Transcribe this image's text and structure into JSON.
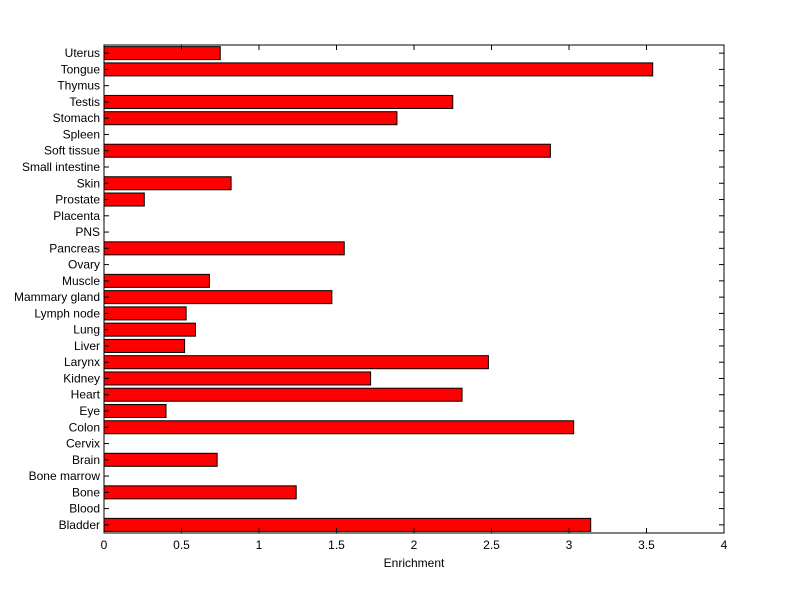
{
  "chart_data": {
    "type": "bar",
    "orientation": "horizontal",
    "categories": [
      "Bladder",
      "Blood",
      "Bone",
      "Bone marrow",
      "Brain",
      "Cervix",
      "Colon",
      "Eye",
      "Heart",
      "Kidney",
      "Larynx",
      "Liver",
      "Lung",
      "Lymph node",
      "Mammary gland",
      "Muscle",
      "Ovary",
      "Pancreas",
      "PNS",
      "Placenta",
      "Prostate",
      "Skin",
      "Small intestine",
      "Soft tissue",
      "Spleen",
      "Stomach",
      "Testis",
      "Thymus",
      "Tongue",
      "Uterus"
    ],
    "values": [
      3.14,
      0,
      1.24,
      0,
      0.73,
      0,
      3.03,
      0.4,
      2.31,
      1.72,
      2.48,
      0.52,
      0.59,
      0.53,
      1.47,
      0.68,
      0,
      1.55,
      0,
      0,
      0.26,
      0.82,
      0,
      2.88,
      0,
      1.89,
      2.25,
      0,
      3.54,
      0.75
    ],
    "xlabel": "Enrichment",
    "ylabel": "",
    "title": "",
    "xlim": [
      0,
      4
    ],
    "xticks": [
      "0",
      "0.5",
      "1",
      "1.5",
      "2",
      "2.5",
      "3",
      "3.5",
      "4"
    ],
    "grid": false,
    "bar_color": "#ff0000",
    "bar_edge_color": "#000000"
  }
}
